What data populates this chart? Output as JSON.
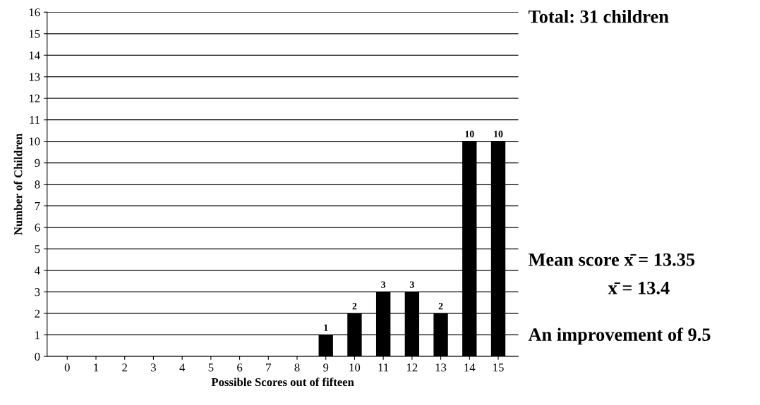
{
  "chart_data": {
    "type": "bar",
    "categories": [
      "0",
      "1",
      "2",
      "3",
      "4",
      "5",
      "6",
      "7",
      "8",
      "9",
      "10",
      "11",
      "12",
      "13",
      "14",
      "15"
    ],
    "values": [
      0,
      0,
      0,
      0,
      0,
      0,
      0,
      0,
      0,
      1,
      2,
      3,
      3,
      2,
      10,
      10
    ],
    "value_labels": [
      null,
      null,
      null,
      null,
      null,
      null,
      null,
      null,
      null,
      "1",
      "2",
      "3",
      "3",
      "2",
      "10",
      "10"
    ],
    "color": "#000000",
    "xlabel": "Possible Scores out of fifteen",
    "ylabel": "Number of Children",
    "ylim": [
      0,
      16
    ],
    "yticks": [
      0,
      1,
      2,
      3,
      4,
      5,
      6,
      7,
      8,
      9,
      10,
      11,
      12,
      13,
      14,
      15,
      16
    ],
    "grid": "y",
    "annotations": [
      "Total: 31 children",
      "Mean score x̄ = 13.35",
      "x̄ = 13.4",
      "An improvement of 9.5"
    ]
  }
}
